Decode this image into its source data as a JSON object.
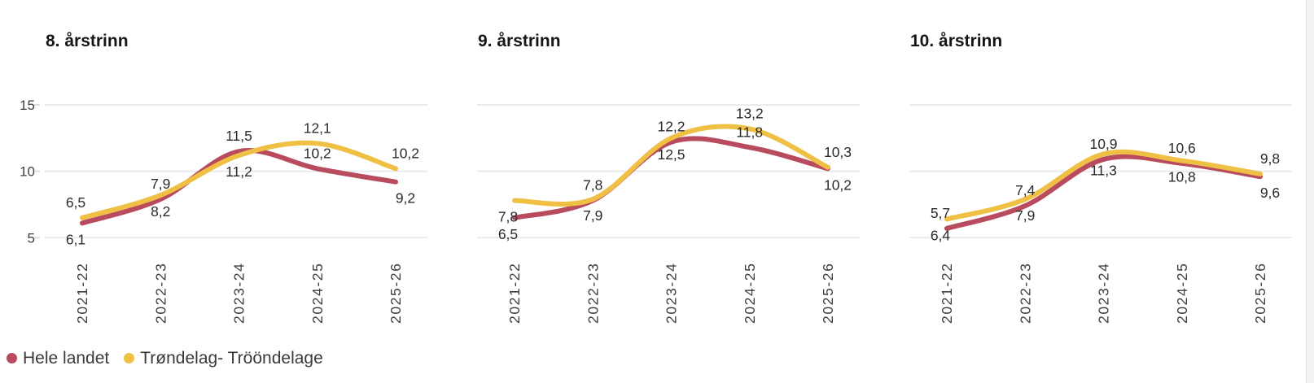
{
  "legend": {
    "items": [
      {
        "label": "Hele landet",
        "color": "#b84b5e"
      },
      {
        "label": "Trøndelag- Trööndelage",
        "color": "#efc044"
      }
    ]
  },
  "x_categories": [
    "2021-22",
    "2022-23",
    "2023-24",
    "2024-25",
    "2025-26"
  ],
  "y_axis": {
    "tick_labels": [
      "15",
      "10",
      "5"
    ],
    "tick_values": [
      15,
      10,
      5
    ],
    "ylim": [
      5,
      15
    ]
  },
  "chart_data": [
    {
      "type": "line",
      "title": "8. årstrinn",
      "show_y_axis": true,
      "categories": [
        "2021-22",
        "2022-23",
        "2023-24",
        "2024-25",
        "2025-26"
      ],
      "ylim": [
        5,
        15
      ],
      "gridline_values": [
        15,
        10,
        5
      ],
      "series": [
        {
          "name": "Hele landet",
          "color": "#b84b5e",
          "values": [
            6.1,
            7.9,
            11.5,
            10.2,
            9.2
          ],
          "labels": [
            "6,1",
            "7,9",
            "11,5",
            "10,2",
            "9,2"
          ],
          "label_pos": [
            "below",
            "above",
            "above",
            "above",
            "below"
          ]
        },
        {
          "name": "Trøndelag- Trööndelage",
          "color": "#efc044",
          "values": [
            6.5,
            8.2,
            11.2,
            12.1,
            10.2
          ],
          "labels": [
            "6,5",
            "8,2",
            "11,2",
            "12,1",
            "10,2"
          ],
          "label_pos": [
            "above",
            "below",
            "below",
            "above",
            "above"
          ]
        }
      ]
    },
    {
      "type": "line",
      "title": "9. årstrinn",
      "show_y_axis": false,
      "categories": [
        "2021-22",
        "2022-23",
        "2023-24",
        "2024-25",
        "2025-26"
      ],
      "ylim": [
        5,
        15
      ],
      "gridline_values": [
        15,
        10,
        5
      ],
      "series": [
        {
          "name": "Hele landet",
          "color": "#b84b5e",
          "values": [
            6.5,
            7.8,
            12.2,
            11.8,
            10.2
          ],
          "labels": [
            "6,5",
            "7,8",
            "12,2",
            "11,8",
            "10,2"
          ],
          "label_pos": [
            "below",
            "above",
            "above",
            "above",
            "below"
          ]
        },
        {
          "name": "Trøndelag- Trööndelage",
          "color": "#efc044",
          "values": [
            7.8,
            7.9,
            12.5,
            13.2,
            10.3
          ],
          "labels": [
            "7,8",
            "7,9",
            "12,5",
            "13,2",
            "10,3"
          ],
          "label_pos": [
            "below",
            "below",
            "below",
            "above",
            "above"
          ]
        }
      ]
    },
    {
      "type": "line",
      "title": "10. årstrinn",
      "show_y_axis": false,
      "categories": [
        "2021-22",
        "2022-23",
        "2023-24",
        "2024-25",
        "2025-26"
      ],
      "ylim": [
        5,
        15
      ],
      "gridline_values": [
        15,
        10,
        5
      ],
      "series": [
        {
          "name": "Hele landet",
          "color": "#b84b5e",
          "values": [
            5.7,
            7.4,
            10.9,
            10.6,
            9.6
          ],
          "labels": [
            "5,7",
            "7,4",
            "10,9",
            "10,6",
            "9,6"
          ],
          "label_pos": [
            "above",
            "above",
            "above",
            "above",
            "below"
          ]
        },
        {
          "name": "Trøndelag- Trööndelage",
          "color": "#efc044",
          "values": [
            6.4,
            7.9,
            11.3,
            10.8,
            9.8
          ],
          "labels": [
            "6,4",
            "7,9",
            "11,3",
            "10,8",
            "9,8"
          ],
          "label_pos": [
            "below",
            "below",
            "below",
            "below",
            "above"
          ]
        }
      ]
    }
  ]
}
